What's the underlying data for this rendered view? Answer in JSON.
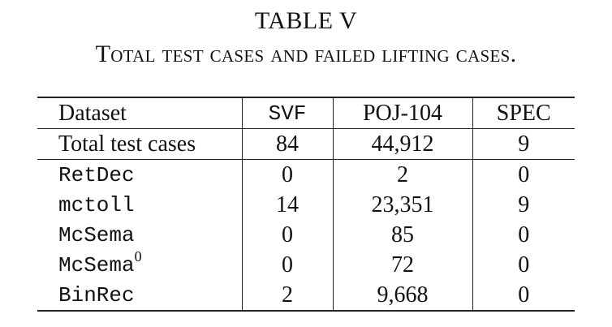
{
  "caption": {
    "number": "TABLE V",
    "title": "Total test cases and failed lifting cases."
  },
  "table": {
    "header": {
      "dataset": "Dataset",
      "svf": "SVF",
      "poj": "POJ-104",
      "spec": "SPEC"
    },
    "total_row": {
      "label": "Total test cases",
      "svf": "84",
      "poj": "44,912",
      "spec": "9"
    },
    "rows": [
      {
        "label": "RetDec",
        "svf": "0",
        "poj": "2",
        "spec": "0"
      },
      {
        "label": "mctoll",
        "svf": "14",
        "poj": "23,351",
        "spec": "9"
      },
      {
        "label": "McSema",
        "svf": "0",
        "poj": "85",
        "spec": "0"
      },
      {
        "label": "McSema",
        "label_sup": "0",
        "svf": "0",
        "poj": "72",
        "spec": "0"
      },
      {
        "label": "BinRec",
        "svf": "2",
        "poj": "9,668",
        "spec": "0"
      }
    ]
  }
}
